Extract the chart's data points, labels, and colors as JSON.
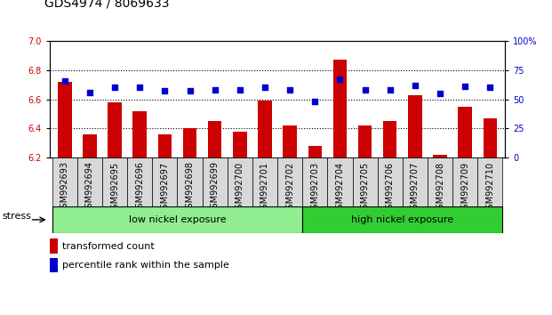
{
  "title": "GDS4974 / 8069633",
  "samples": [
    "GSM992693",
    "GSM992694",
    "GSM992695",
    "GSM992696",
    "GSM992697",
    "GSM992698",
    "GSM992699",
    "GSM992700",
    "GSM992701",
    "GSM992702",
    "GSM992703",
    "GSM992704",
    "GSM992705",
    "GSM992706",
    "GSM992707",
    "GSM992708",
    "GSM992709",
    "GSM992710"
  ],
  "bar_values": [
    6.72,
    6.36,
    6.58,
    6.52,
    6.36,
    6.4,
    6.45,
    6.38,
    6.59,
    6.42,
    6.28,
    6.87,
    6.42,
    6.45,
    6.63,
    6.22,
    6.55,
    6.47
  ],
  "percentile_values": [
    66,
    56,
    60,
    60,
    57,
    57,
    58,
    58,
    60,
    58,
    48,
    67,
    58,
    58,
    62,
    55,
    61,
    60
  ],
  "bar_color": "#CC0000",
  "percentile_color": "#0000CC",
  "ylim_left": [
    6.2,
    7.0
  ],
  "ylim_right": [
    0,
    100
  ],
  "yticks_left": [
    6.2,
    6.4,
    6.6,
    6.8,
    7.0
  ],
  "yticks_right": [
    0,
    25,
    50,
    75,
    100
  ],
  "grid_values": [
    6.4,
    6.6,
    6.8
  ],
  "low_nickel_count": 10,
  "high_nickel_count": 8,
  "low_nickel_label": "low nickel exposure",
  "high_nickel_label": "high nickel exposure",
  "stress_label": "stress",
  "legend_bar_label": "transformed count",
  "legend_pct_label": "percentile rank within the sample",
  "low_nickel_color": "#90EE90",
  "high_nickel_color": "#32CD32",
  "title_fontsize": 10,
  "tick_fontsize": 7,
  "label_fontsize": 8,
  "right_tick_color": "#0000CC",
  "left_tick_color": "#CC0000"
}
